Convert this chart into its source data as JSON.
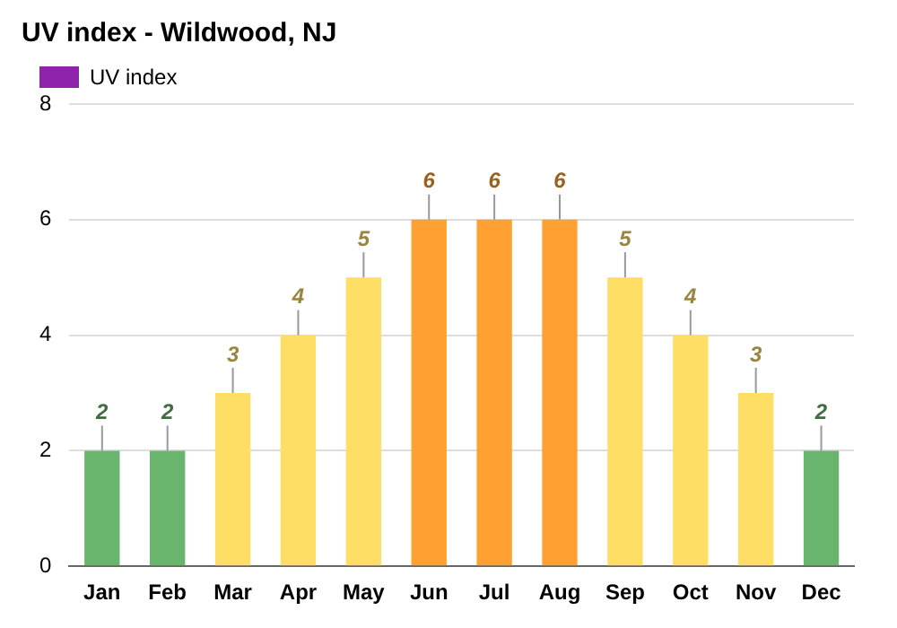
{
  "chart_data": {
    "type": "bar",
    "title": "UV index - Wildwood, NJ",
    "categories": [
      "Jan",
      "Feb",
      "Mar",
      "Apr",
      "May",
      "Jun",
      "Jul",
      "Aug",
      "Sep",
      "Oct",
      "Nov",
      "Dec"
    ],
    "series": [
      {
        "name": "UV index",
        "color": "#8e24aa",
        "colors": [
          "#6ab56e",
          "#6ab56e",
          "#ffde66",
          "#ffde66",
          "#ffde66",
          "#ffa032",
          "#ffa032",
          "#ffa032",
          "#ffde66",
          "#ffde66",
          "#ffde66",
          "#6ab56e"
        ],
        "values": [
          2,
          2,
          3,
          4,
          5,
          6,
          6,
          6,
          5,
          4,
          3,
          2
        ]
      }
    ],
    "ylim": [
      0,
      8
    ],
    "yticks": [
      0,
      2,
      4,
      6,
      8
    ],
    "grid": "y",
    "legend": "top left",
    "data_labels": true
  }
}
